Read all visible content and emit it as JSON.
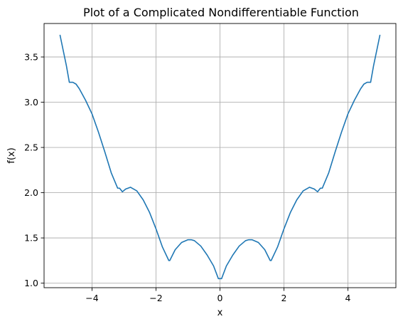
{
  "chart_data": {
    "type": "line",
    "title": "Plot of a Complicated Nondifferentiable Function",
    "xlabel": "x",
    "ylabel": "f(x)",
    "xlim": [
      -5.5,
      5.5
    ],
    "ylim": [
      0.95,
      3.87
    ],
    "grid": true,
    "x_ticks": [
      -4,
      -2,
      0,
      2,
      4
    ],
    "x_tick_labels": [
      "−4",
      "−2",
      "0",
      "2",
      "4"
    ],
    "y_ticks": [
      1.0,
      1.5,
      2.0,
      2.5,
      3.0,
      3.5
    ],
    "y_tick_labels": [
      "1.0",
      "1.5",
      "2.0",
      "2.5",
      "3.0",
      "3.5"
    ],
    "colors": {
      "line": "#1f77b4",
      "grid": "#b0b0b0",
      "axes": "#000000"
    },
    "series": [
      {
        "x": [
          -5.0,
          -4.9,
          -4.8,
          -4.71,
          -4.6,
          -4.5,
          -4.4,
          -4.2,
          -4.0,
          -3.8,
          -3.6,
          -3.4,
          -3.2,
          -3.14,
          -3.05,
          -2.95,
          -2.8,
          -2.6,
          -2.4,
          -2.2,
          -2.0,
          -1.8,
          -1.6,
          -1.57,
          -1.4,
          -1.2,
          -1.0,
          -0.9,
          -0.8,
          -0.6,
          -0.4,
          -0.2,
          -0.05,
          0.05,
          0.2,
          0.4,
          0.6,
          0.8,
          0.9,
          1.0,
          1.2,
          1.4,
          1.57,
          1.6,
          1.8,
          2.0,
          2.2,
          2.4,
          2.6,
          2.8,
          2.95,
          3.05,
          3.14,
          3.2,
          3.4,
          3.6,
          3.8,
          4.0,
          4.2,
          4.4,
          4.5,
          4.6,
          4.71,
          4.8,
          4.9,
          5.0
        ],
        "y": [
          3.74,
          3.57,
          3.4,
          3.22,
          3.22,
          3.2,
          3.15,
          3.02,
          2.87,
          2.67,
          2.45,
          2.22,
          2.05,
          2.05,
          2.01,
          2.04,
          2.06,
          2.02,
          1.92,
          1.78,
          1.6,
          1.4,
          1.25,
          1.25,
          1.37,
          1.45,
          1.48,
          1.48,
          1.47,
          1.41,
          1.31,
          1.19,
          1.05,
          1.05,
          1.19,
          1.31,
          1.41,
          1.47,
          1.48,
          1.48,
          1.45,
          1.37,
          1.25,
          1.25,
          1.4,
          1.6,
          1.78,
          1.92,
          2.02,
          2.06,
          2.04,
          2.01,
          2.05,
          2.05,
          2.22,
          2.45,
          2.67,
          2.87,
          3.02,
          3.15,
          3.2,
          3.22,
          3.22,
          3.4,
          3.57,
          3.74
        ]
      }
    ]
  }
}
